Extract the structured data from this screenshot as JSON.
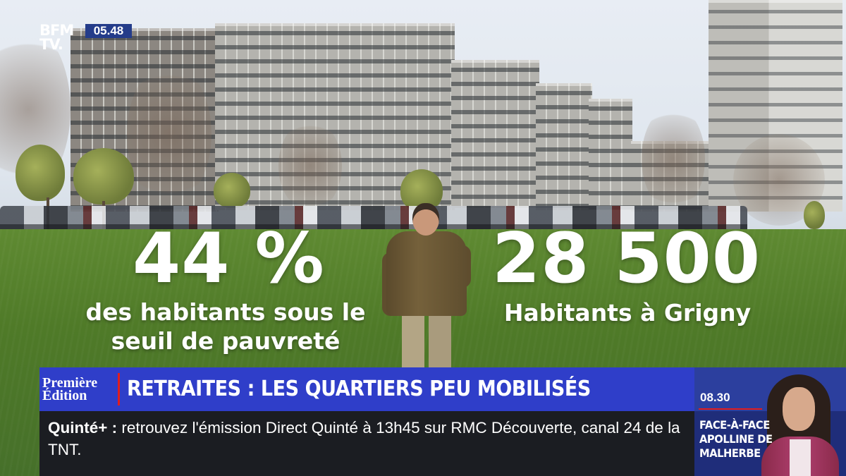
{
  "channel": {
    "logo_line1": "BFM",
    "logo_line2": "TV.",
    "clock": "05.48"
  },
  "stats": {
    "left": {
      "value": "44 %",
      "caption_line1": "des habitants sous le",
      "caption_line2": "seuil de pauvreté"
    },
    "right": {
      "value": "28 500",
      "caption": "Habitants à Grigny"
    }
  },
  "banner": {
    "show_line1": "Première",
    "show_line2": "Édition",
    "headline": "RETRAITES : LES QUARTIERS PEU MOBILISÉS"
  },
  "ticker": {
    "label": "Quinté+ :",
    "text": "retrouvez l'émission Direct Quinté à 13h45 sur RMC Découverte, canal 24 de la TNT."
  },
  "next_show": {
    "time": "08.30",
    "title_line1": "FACE-À-FACE",
    "title_line2": "APOLLINE DE",
    "title_line3": "MALHERBE"
  },
  "colors": {
    "banner_blue": "#2f3ec9",
    "accent_red": "#e21d1d",
    "ticker_bg": "#1b1d22",
    "promo_blue": "#1f2d7a"
  }
}
